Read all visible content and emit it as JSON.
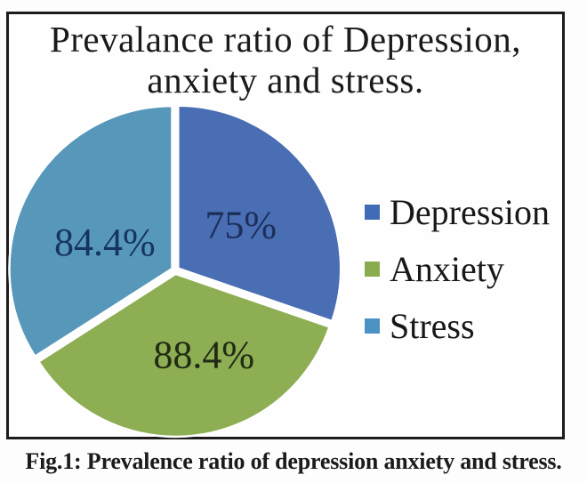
{
  "figure": {
    "title_line1": "Prevalance ratio of Depression,",
    "title_line2": "anxiety and stress.",
    "caption": "Fig.1: Prevalence ratio of depression anxiety and stress."
  },
  "chart_data": {
    "type": "pie",
    "title": "Prevalance ratio of Depression, anxiety and stress.",
    "categories": [
      "Depression",
      "Anxiety",
      "Stress"
    ],
    "values": [
      75,
      88.4,
      84.4
    ],
    "labels": [
      "75%",
      "88.4%",
      "84.4%"
    ],
    "units": "%",
    "colors": [
      "#4a6eb3",
      "#8dae52",
      "#5697ba"
    ],
    "label_colors": [
      "#1c2f5a",
      "#202a14",
      "#16355e"
    ],
    "start_angle_deg": 0,
    "clockwise": true,
    "separated_slices": true,
    "legend_position": "right"
  },
  "legend": {
    "items": [
      {
        "label": "Depression",
        "color": "#3f6cb5"
      },
      {
        "label": "Anxiety",
        "color": "#8aab4e"
      },
      {
        "label": "Stress",
        "color": "#4a93c3"
      }
    ]
  }
}
